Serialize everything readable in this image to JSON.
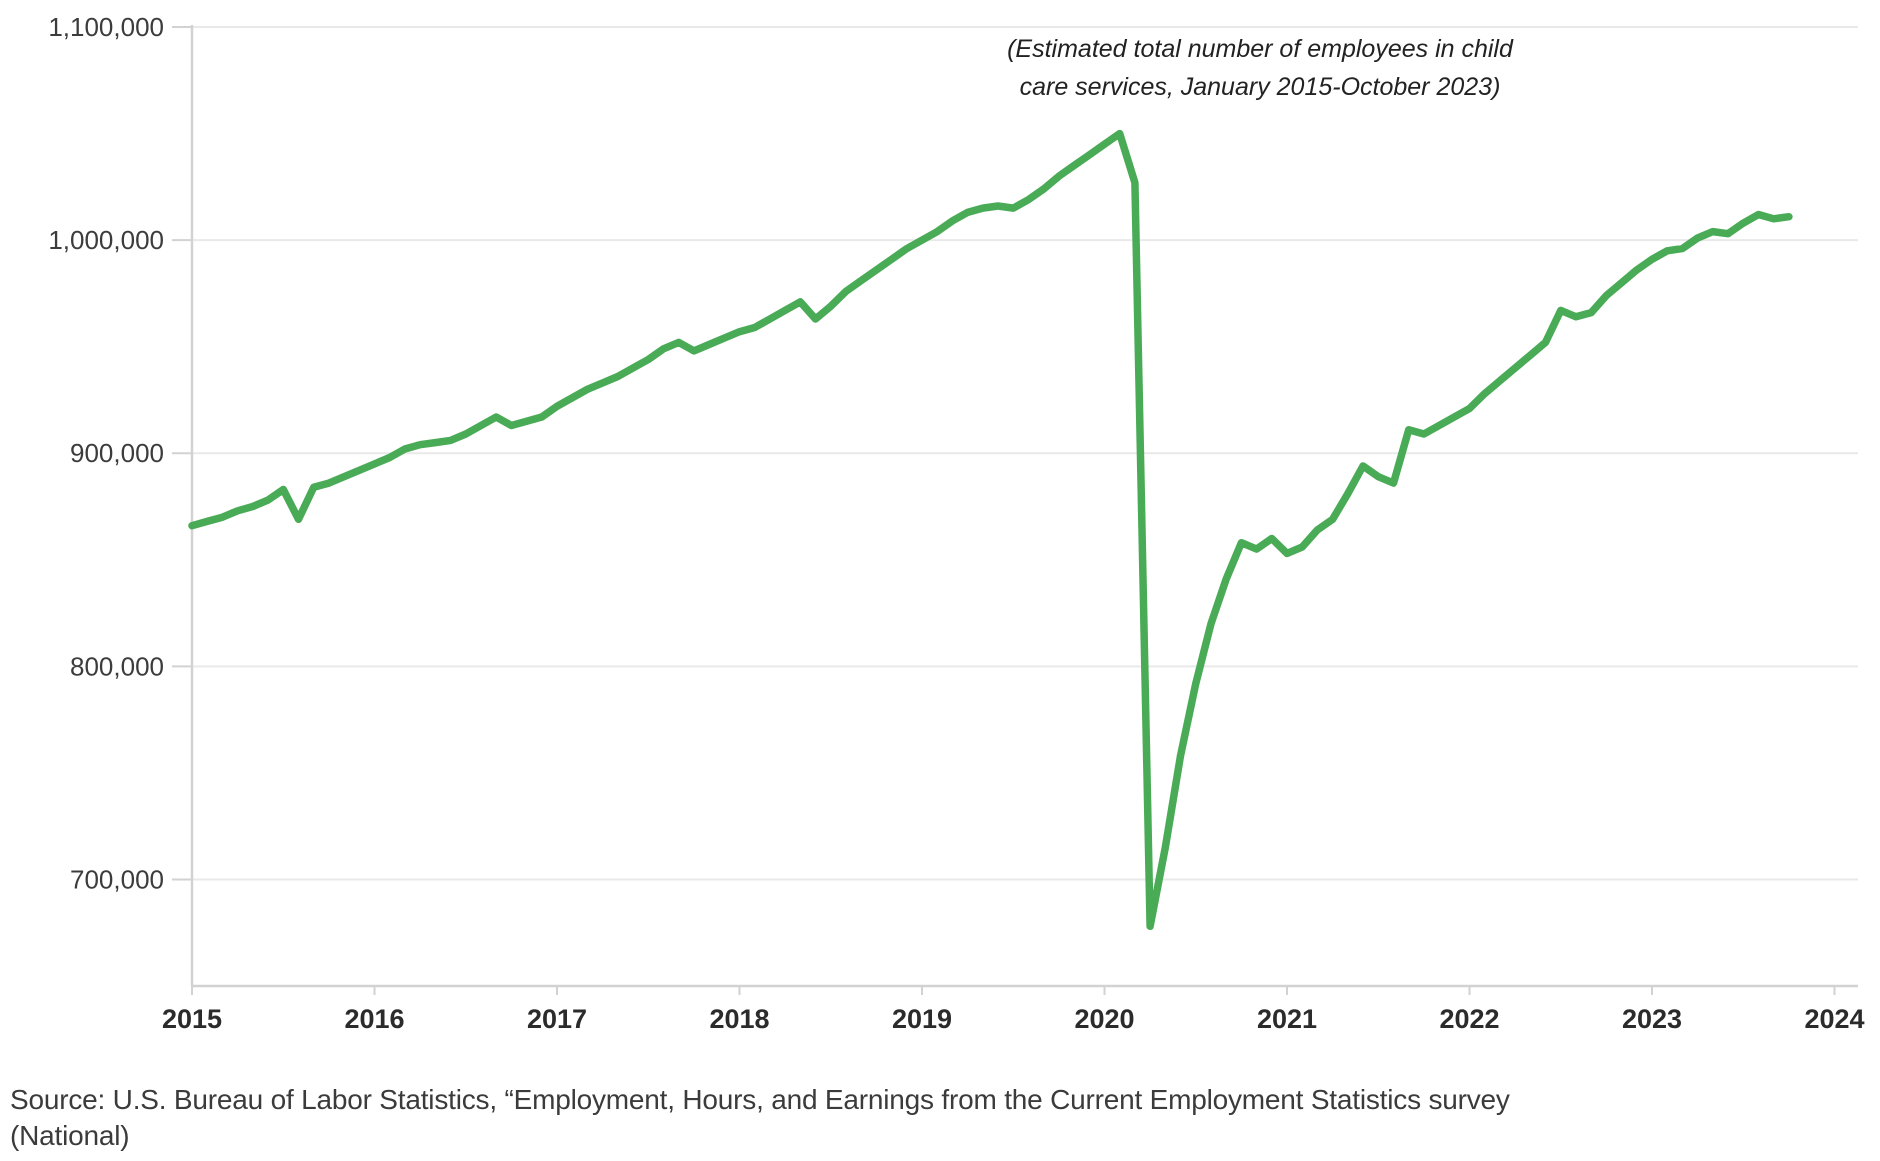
{
  "chart_data": {
    "type": "line",
    "title": "(Estimated total number of employees in child care services, January 2015-October 2023)",
    "title_lines": [
      "(Estimated total number of employees in child",
      "care services, January 2015-October 2023)"
    ],
    "source_lines": [
      "Source: U.S. Bureau of Labor Statistics, “Employment, Hours, and Earnings from the Current Employment Statistics survey",
      "(National)"
    ],
    "x_unit": "month",
    "x_range": [
      "2015-01",
      "2023-10"
    ],
    "x_tick_labels": [
      "2015",
      "2016",
      "2017",
      "2018",
      "2019",
      "2020",
      "2021",
      "2022",
      "2023",
      "2024"
    ],
    "y_ticks": [
      {
        "value": 1100000,
        "label": "1,100,000"
      },
      {
        "value": 1000000,
        "label": "1,000,000"
      },
      {
        "value": 900000,
        "label": "900,000"
      },
      {
        "value": 800000,
        "label": "800,000"
      },
      {
        "value": 700000,
        "label": "700,000"
      }
    ],
    "ylim": [
      650000,
      1100000
    ],
    "grid": true,
    "legend": false,
    "series": [
      {
        "name": "Employees in child care services",
        "color": "#4aab57",
        "values": [
          866000,
          868000,
          870000,
          873000,
          875000,
          878000,
          883000,
          869000,
          884000,
          886000,
          889000,
          892000,
          895000,
          898000,
          902000,
          904000,
          905000,
          906000,
          909000,
          913000,
          917000,
          913000,
          915000,
          917000,
          922000,
          926000,
          930000,
          933000,
          936000,
          940000,
          944000,
          949000,
          952000,
          948000,
          951000,
          954000,
          957000,
          959000,
          963000,
          967000,
          971000,
          963000,
          969000,
          976000,
          981000,
          986000,
          991000,
          996000,
          1000000,
          1004000,
          1009000,
          1013000,
          1015000,
          1016000,
          1015000,
          1019000,
          1024000,
          1030000,
          1035000,
          1040000,
          1045000,
          1050000,
          1027000,
          678000,
          715000,
          758000,
          792000,
          820000,
          841000,
          858000,
          855000,
          860000,
          853000,
          856000,
          864000,
          869000,
          881000,
          894000,
          889000,
          886000,
          911000,
          909000,
          913000,
          917000,
          921000,
          928000,
          934000,
          940000,
          946000,
          952000,
          967000,
          964000,
          966000,
          974000,
          980000,
          986000,
          991000,
          995000,
          996000,
          1001000,
          1004000,
          1003000,
          1008000,
          1012000,
          1010000,
          1011000
        ]
      }
    ],
    "colors": {
      "line": "#4aab57",
      "grid": "#e9e9e9",
      "axis": "#d2d2d2",
      "y_tick_label": "#3c3c3c",
      "x_tick_label": "#2b2b2b"
    }
  }
}
